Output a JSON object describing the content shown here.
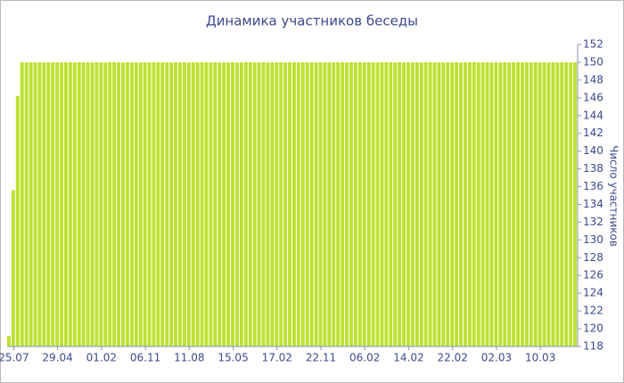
{
  "chart_data": {
    "type": "bar",
    "title": "Динамика участников беседы",
    "y_label": "Число участников",
    "categories": [
      null,
      "25.07",
      null,
      null,
      null,
      null,
      null,
      null,
      null,
      null,
      null,
      "29.04",
      null,
      null,
      null,
      null,
      null,
      null,
      null,
      null,
      null,
      "01.02",
      null,
      null,
      null,
      null,
      null,
      null,
      null,
      null,
      null,
      "06.11",
      null,
      null,
      null,
      null,
      null,
      null,
      null,
      null,
      null,
      "11.08",
      null,
      null,
      null,
      null,
      null,
      null,
      null,
      null,
      null,
      "15.05",
      null,
      null,
      null,
      null,
      null,
      null,
      null,
      null,
      null,
      "17.02",
      null,
      null,
      null,
      null,
      null,
      null,
      null,
      null,
      null,
      "22.11",
      null,
      null,
      null,
      null,
      null,
      null,
      null,
      null,
      null,
      "06.02",
      null,
      null,
      null,
      null,
      null,
      null,
      null,
      null,
      null,
      "14.02",
      null,
      null,
      null,
      null,
      null,
      null,
      null,
      null,
      null,
      "22.02",
      null,
      null,
      null,
      null,
      null,
      null,
      null,
      null,
      null,
      "02.03",
      null,
      null,
      null,
      null,
      null,
      null,
      null,
      null,
      null,
      "10.03",
      null,
      null,
      null,
      null,
      null,
      null,
      null,
      null
    ],
    "values": [
      119.2,
      135.6,
      146.2,
      150,
      150,
      150,
      150,
      150,
      150,
      150,
      150,
      150,
      150,
      150,
      150,
      150,
      150,
      150,
      150,
      150,
      150,
      150,
      150,
      150,
      150,
      150,
      150,
      150,
      150,
      150,
      150,
      150,
      150,
      150,
      150,
      150,
      150,
      150,
      150,
      150,
      150,
      150,
      150,
      150,
      150,
      150,
      150,
      150,
      150,
      150,
      150,
      150,
      150,
      150,
      150,
      150,
      150,
      150,
      150,
      150,
      150,
      150,
      150,
      150,
      150,
      150,
      150,
      150,
      150,
      150,
      150,
      150,
      150,
      150,
      150,
      150,
      150,
      150,
      150,
      150,
      150,
      150,
      150,
      150,
      150,
      150,
      150,
      150,
      150,
      150,
      150,
      150,
      150,
      150,
      150,
      150,
      150,
      150,
      150,
      150,
      150,
      150,
      150,
      150,
      150,
      150,
      150,
      150,
      150,
      150,
      150,
      150,
      150,
      150,
      150,
      150,
      150,
      150,
      150,
      150,
      150,
      150,
      150,
      150,
      150,
      150,
      150,
      150,
      150,
      150
    ],
    "color": "#bde232",
    "ylim": [
      118,
      152
    ],
    "yticks": [
      118,
      120,
      122,
      124,
      126,
      128,
      130,
      132,
      134,
      136,
      138,
      140,
      142,
      144,
      146,
      148,
      150,
      152
    ],
    "y_axis_side": "right",
    "grid": false
  }
}
